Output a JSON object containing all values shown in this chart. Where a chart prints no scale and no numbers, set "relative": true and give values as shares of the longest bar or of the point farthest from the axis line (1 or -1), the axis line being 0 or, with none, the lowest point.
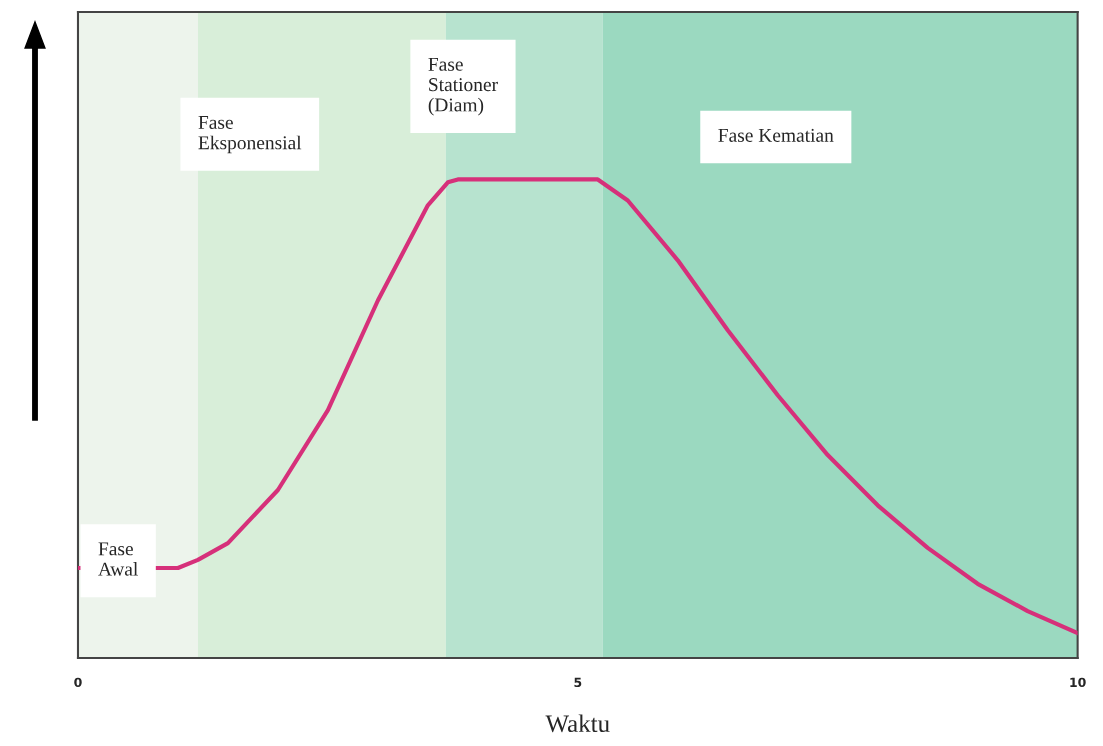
{
  "chart_data": {
    "type": "line",
    "relative": true,
    "xlabel": "Waktu",
    "x": [
      0,
      1,
      1.2,
      1.5,
      2,
      2.5,
      3,
      3.5,
      3.7,
      3.8,
      5.2,
      5.5,
      6,
      6.5,
      7,
      7.5,
      8,
      8.5,
      9,
      9.5,
      10
    ],
    "series": [
      {
        "color": "#d6307a",
        "values": [
          0.188,
          0.188,
          0.205,
          0.24,
          0.351,
          0.518,
          0.747,
          0.946,
          0.994,
          1,
          1,
          0.956,
          0.831,
          0.685,
          0.549,
          0.424,
          0.319,
          0.23,
          0.155,
          0.098,
          0.052
        ]
      }
    ],
    "xlim": [
      0,
      10
    ],
    "xticks": [
      0,
      5,
      10
    ],
    "grid": false,
    "legend": false,
    "marker": "none",
    "line_style": "solid",
    "bands": [
      {
        "axis": "x",
        "from": 0,
        "to": 1.2,
        "label": "Fase\nAwal",
        "color": "#edf4ec"
      },
      {
        "axis": "x",
        "from": 1.2,
        "to": 3.68,
        "label": "Fase\nEksponensial",
        "color": "#d8eed9"
      },
      {
        "axis": "x",
        "from": 3.68,
        "to": 5.25,
        "label": "Fase\nStationer\n(Diam)",
        "color": "#b7e3cf"
      },
      {
        "axis": "x",
        "from": 5.25,
        "to": 10,
        "label": "Fase Kematian",
        "color": "#9bd9c0"
      }
    ]
  }
}
